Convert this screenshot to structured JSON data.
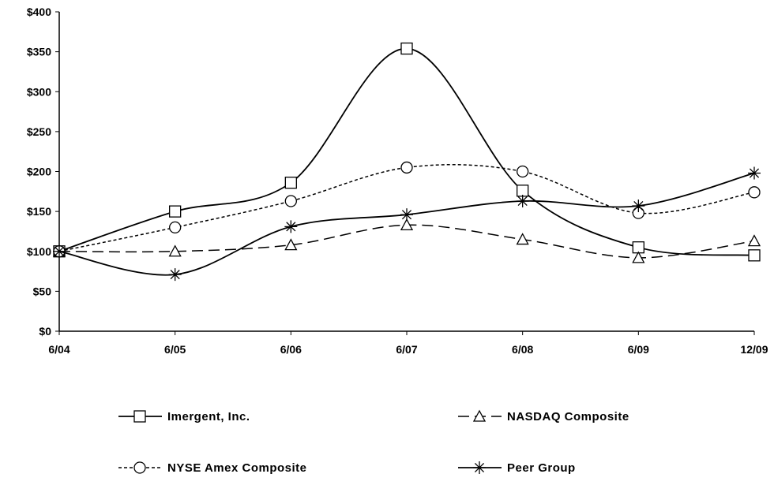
{
  "chart_data": {
    "type": "line",
    "categories": [
      "6/04",
      "6/05",
      "6/06",
      "6/07",
      "6/08",
      "6/09",
      "12/09"
    ],
    "y_ticks": [
      "$0",
      "$50",
      "$100",
      "$150",
      "$200",
      "$250",
      "$300",
      "$350",
      "$400"
    ],
    "ylim": [
      0,
      400
    ],
    "grid": false,
    "legend_position": "bottom",
    "series": [
      {
        "name": "Imergent, Inc.",
        "marker": "square",
        "dash": "solid",
        "values": [
          100,
          150,
          186,
          354,
          176,
          105,
          95
        ]
      },
      {
        "name": "NASDAQ Composite",
        "marker": "triangle",
        "dash": "longdash",
        "values": [
          100,
          100,
          108,
          133,
          115,
          92,
          113
        ]
      },
      {
        "name": "NYSE Amex Composite",
        "marker": "circle",
        "dash": "dotted",
        "values": [
          100,
          130,
          163,
          205,
          200,
          148,
          174
        ]
      },
      {
        "name": "Peer Group",
        "marker": "star",
        "dash": "solid",
        "values": [
          100,
          71,
          131,
          146,
          163,
          157,
          198
        ]
      }
    ]
  }
}
